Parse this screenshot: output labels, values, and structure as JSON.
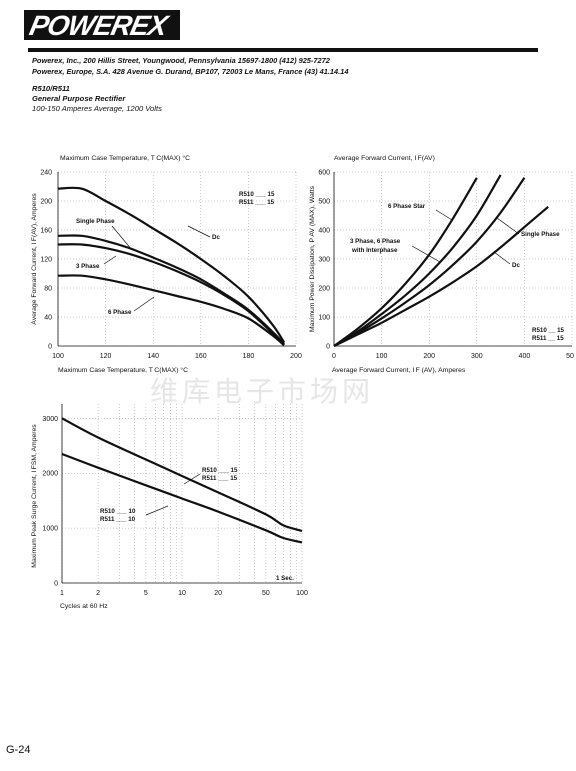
{
  "header": {
    "logo_text": "POWEREX",
    "address_line1": "Powerex, Inc., 200 Hillis Street, Youngwood, Pennsylvania 15697-1800 (412) 925-7272",
    "address_line2": "Powerex, Europe, S.A. 428 Avenue G. Durand, BP107, 72003 Le Mans, France (43) 41.14.14",
    "part_numbers": "R510/R511",
    "device_type": "General Purpose Rectifier",
    "ratings": "100-150 Amperes Average, 1200 Volts"
  },
  "watermark": "维库电子市场网",
  "page_number": "G-24",
  "colors": {
    "ink": "#111111",
    "grid": "#9a9a9a",
    "watermark": "#e6e6e6"
  },
  "chart_data": [
    {
      "type": "line",
      "title": "Maximum Case Temperature, T C(MAX) °C",
      "xlabel": "Maximum Case Temperature, T C(MAX) °C",
      "ylabel": "Average Forward Current, I F(AV), Amperes",
      "xlim": [
        100,
        200
      ],
      "ylim": [
        0,
        240
      ],
      "xticks": [
        "100",
        "120",
        "140",
        "160",
        "180",
        "200"
      ],
      "yticks": [
        "0",
        "40",
        "80",
        "120",
        "160",
        "200",
        "240"
      ],
      "grid": true,
      "series": [
        {
          "name": "Dc",
          "x": [
            100,
            110,
            120,
            130,
            140,
            150,
            160,
            170,
            180,
            190,
            195
          ],
          "y": [
            217,
            217,
            200,
            182,
            162,
            142,
            120,
            96,
            68,
            30,
            5
          ]
        },
        {
          "name": "Single Phase",
          "x": [
            100,
            110,
            120,
            130,
            140,
            150,
            160,
            170,
            180,
            190,
            195
          ],
          "y": [
            152,
            152,
            145,
            135,
            122,
            108,
            92,
            72,
            50,
            20,
            3
          ]
        },
        {
          "name": "",
          "x": [
            100,
            110,
            120,
            130,
            140,
            150,
            160,
            170,
            180,
            190,
            195
          ],
          "y": [
            140,
            140,
            135,
            127,
            116,
            103,
            88,
            70,
            48,
            18,
            2
          ]
        },
        {
          "name": "3 Phase",
          "x": [
            100,
            110,
            120,
            130,
            140,
            150,
            160,
            170,
            180,
            190,
            195
          ],
          "y": [
            97,
            97,
            92,
            85,
            77,
            69,
            61,
            51,
            38,
            15,
            1
          ]
        },
        {
          "name": "6 Phase",
          "x": [
            100,
            110,
            120,
            130,
            140,
            150,
            160,
            170,
            180,
            190,
            195
          ],
          "y": [
            97,
            97,
            92,
            85,
            77,
            69,
            61,
            51,
            38,
            15,
            1
          ]
        }
      ],
      "annotations": [
        "Dc",
        "Single Phase",
        "3 Phase",
        "6 Phase"
      ],
      "part_labels": [
        "R510",
        "R511"
      ],
      "part_suffixes": [
        "15",
        "15"
      ]
    },
    {
      "type": "line",
      "title": "Average Forward Current, I F(AV)",
      "xlabel": "Average Forward Current, I F (AV), Amperes",
      "ylabel": "Maximum Power Dissipation, P AV (MAX), Watts",
      "xlim": [
        0,
        500
      ],
      "ylim": [
        0,
        600
      ],
      "xticks": [
        "0",
        "100",
        "200",
        "300",
        "400",
        "50"
      ],
      "yticks": [
        "0",
        "100",
        "200",
        "300",
        "400",
        "500",
        "600"
      ],
      "grid": true,
      "series": [
        {
          "name": "6 Phase Star",
          "x": [
            0,
            50,
            100,
            150,
            200,
            250,
            300
          ],
          "y": [
            0,
            60,
            130,
            215,
            315,
            440,
            580
          ]
        },
        {
          "name": "3 Phase, 6 Phase with Interphase",
          "x": [
            0,
            50,
            100,
            150,
            200,
            250,
            300,
            350
          ],
          "y": [
            0,
            50,
            110,
            175,
            250,
            340,
            450,
            590
          ]
        },
        {
          "name": "Single Phase",
          "x": [
            0,
            50,
            100,
            150,
            200,
            250,
            300,
            350,
            400
          ],
          "y": [
            0,
            45,
            95,
            150,
            210,
            280,
            360,
            460,
            580
          ]
        },
        {
          "name": "Dc",
          "x": [
            0,
            50,
            100,
            150,
            200,
            250,
            300,
            350,
            400,
            450
          ],
          "y": [
            0,
            40,
            80,
            125,
            170,
            220,
            275,
            340,
            410,
            480
          ]
        }
      ],
      "annotations": [
        "6 Phase Star",
        "3 Phase, 6 Phase",
        "with Interphase",
        "Single Phase",
        "Dc"
      ],
      "part_labels": [
        "R510",
        "R511"
      ],
      "part_suffixes": [
        "15",
        "15"
      ]
    },
    {
      "type": "line",
      "title": "",
      "xlabel": "Cycles at 60 Hz",
      "ylabel": "Maximum Peak Surge Current, I FSM, Amperes",
      "xlim": [
        1,
        100
      ],
      "ylim": [
        0,
        3000
      ],
      "xscale": "log",
      "xticks": [
        "1",
        "2",
        "5",
        "10",
        "20",
        "50",
        "100"
      ],
      "yticks": [
        "0",
        "1000",
        "2000",
        "3000"
      ],
      "grid": true,
      "series": [
        {
          "name": "R510/R511 15",
          "x": [
            1,
            2,
            5,
            10,
            20,
            50,
            70,
            100
          ],
          "y": [
            3000,
            2650,
            2250,
            1950,
            1650,
            1250,
            1050,
            950
          ]
        },
        {
          "name": "R510/R511 10",
          "x": [
            1,
            2,
            5,
            10,
            20,
            50,
            70,
            100
          ],
          "y": [
            2350,
            2100,
            1780,
            1540,
            1300,
            960,
            820,
            740
          ]
        }
      ],
      "annotations": [
        "1 Sec."
      ],
      "part_labels_top": [
        "R510",
        "R511"
      ],
      "part_suffixes_top": [
        "15",
        "15"
      ],
      "part_labels_bottom": [
        "R510",
        "R511"
      ],
      "part_suffixes_bottom": [
        "10",
        "10"
      ]
    }
  ]
}
